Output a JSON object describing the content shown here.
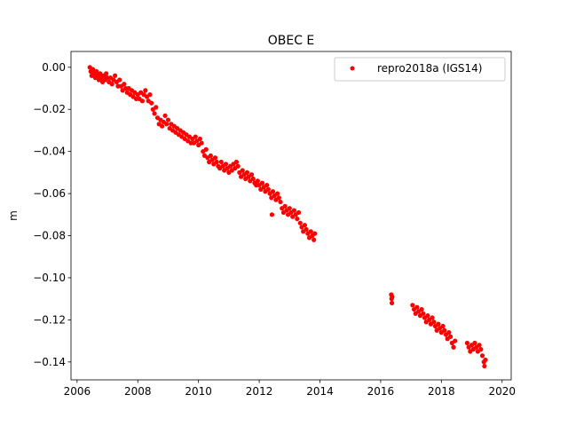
{
  "chart_data": {
    "type": "scatter",
    "title": "OBEC E",
    "xlabel": "",
    "ylabel": "m",
    "xlim": [
      2005.8,
      2020.3
    ],
    "ylim": [
      -0.1485,
      0.0075
    ],
    "xticks": [
      2006,
      2008,
      2010,
      2012,
      2014,
      2016,
      2018,
      2020
    ],
    "xtick_labels": [
      "2006",
      "2008",
      "2010",
      "2012",
      "2014",
      "2016",
      "2018",
      "2020"
    ],
    "yticks": [
      0.0,
      -0.02,
      -0.04,
      -0.06,
      -0.08,
      -0.1,
      -0.12,
      -0.14
    ],
    "ytick_labels": [
      "0.00",
      "−0.02",
      "−0.04",
      "−0.06",
      "−0.08",
      "−0.10",
      "−0.12",
      "−0.14"
    ],
    "grid": false,
    "legend_position": "top-right",
    "series": [
      {
        "name": "repro2018a (IGS14)",
        "color": "#ff0000",
        "marker": "point",
        "points": [
          [
            2006.42,
            0.0
          ],
          [
            2006.45,
            -0.002
          ],
          [
            2006.48,
            -0.004
          ],
          [
            2006.52,
            -0.001
          ],
          [
            2006.56,
            -0.003
          ],
          [
            2006.6,
            -0.005
          ],
          [
            2006.64,
            -0.002
          ],
          [
            2006.68,
            -0.004
          ],
          [
            2006.72,
            -0.006
          ],
          [
            2006.76,
            -0.003
          ],
          [
            2006.8,
            -0.005
          ],
          [
            2006.84,
            -0.007
          ],
          [
            2006.88,
            -0.004
          ],
          [
            2006.92,
            -0.006
          ],
          [
            2006.96,
            -0.003
          ],
          [
            2007.0,
            -0.005
          ],
          [
            2007.05,
            -0.007
          ],
          [
            2007.1,
            -0.005
          ],
          [
            2007.15,
            -0.008
          ],
          [
            2007.2,
            -0.006
          ],
          [
            2007.25,
            -0.004
          ],
          [
            2007.3,
            -0.007
          ],
          [
            2007.35,
            -0.009
          ],
          [
            2007.4,
            -0.006
          ],
          [
            2007.45,
            -0.009
          ],
          [
            2007.5,
            -0.011
          ],
          [
            2007.55,
            -0.008
          ],
          [
            2007.6,
            -0.01
          ],
          [
            2007.65,
            -0.012
          ],
          [
            2007.7,
            -0.01
          ],
          [
            2007.75,
            -0.013
          ],
          [
            2007.8,
            -0.011
          ],
          [
            2007.85,
            -0.014
          ],
          [
            2007.9,
            -0.012
          ],
          [
            2007.95,
            -0.015
          ],
          [
            2008.0,
            -0.013
          ],
          [
            2008.05,
            -0.015
          ],
          [
            2008.1,
            -0.012
          ],
          [
            2008.15,
            -0.016
          ],
          [
            2008.2,
            -0.013
          ],
          [
            2008.25,
            -0.011
          ],
          [
            2008.3,
            -0.014
          ],
          [
            2008.35,
            -0.016
          ],
          [
            2008.4,
            -0.013
          ],
          [
            2008.45,
            -0.017
          ],
          [
            2008.5,
            -0.02
          ],
          [
            2008.55,
            -0.022
          ],
          [
            2008.6,
            -0.019
          ],
          [
            2008.65,
            -0.024
          ],
          [
            2008.7,
            -0.027
          ],
          [
            2008.75,
            -0.025
          ],
          [
            2008.8,
            -0.028
          ],
          [
            2008.85,
            -0.026
          ],
          [
            2008.9,
            -0.023
          ],
          [
            2008.95,
            -0.027
          ],
          [
            2009.0,
            -0.025
          ],
          [
            2009.05,
            -0.029
          ],
          [
            2009.1,
            -0.027
          ],
          [
            2009.15,
            -0.03
          ],
          [
            2009.2,
            -0.028
          ],
          [
            2009.25,
            -0.031
          ],
          [
            2009.3,
            -0.029
          ],
          [
            2009.35,
            -0.032
          ],
          [
            2009.4,
            -0.03
          ],
          [
            2009.45,
            -0.033
          ],
          [
            2009.5,
            -0.031
          ],
          [
            2009.55,
            -0.034
          ],
          [
            2009.6,
            -0.032
          ],
          [
            2009.65,
            -0.035
          ],
          [
            2009.7,
            -0.033
          ],
          [
            2009.75,
            -0.036
          ],
          [
            2009.8,
            -0.034
          ],
          [
            2009.85,
            -0.036
          ],
          [
            2009.9,
            -0.033
          ],
          [
            2009.95,
            -0.035
          ],
          [
            2010.0,
            -0.037
          ],
          [
            2010.05,
            -0.034
          ],
          [
            2010.1,
            -0.036
          ],
          [
            2010.15,
            -0.04
          ],
          [
            2010.2,
            -0.042
          ],
          [
            2010.25,
            -0.039
          ],
          [
            2010.3,
            -0.043
          ],
          [
            2010.35,
            -0.045
          ],
          [
            2010.4,
            -0.042
          ],
          [
            2010.45,
            -0.044
          ],
          [
            2010.5,
            -0.046
          ],
          [
            2010.55,
            -0.043
          ],
          [
            2010.6,
            -0.045
          ],
          [
            2010.65,
            -0.047
          ],
          [
            2010.7,
            -0.048
          ],
          [
            2010.75,
            -0.045
          ],
          [
            2010.8,
            -0.047
          ],
          [
            2010.85,
            -0.049
          ],
          [
            2010.9,
            -0.046
          ],
          [
            2010.95,
            -0.048
          ],
          [
            2011.0,
            -0.05
          ],
          [
            2011.05,
            -0.047
          ],
          [
            2011.1,
            -0.049
          ],
          [
            2011.15,
            -0.046
          ],
          [
            2011.2,
            -0.048
          ],
          [
            2011.25,
            -0.045
          ],
          [
            2011.3,
            -0.047
          ],
          [
            2011.35,
            -0.05
          ],
          [
            2011.4,
            -0.052
          ],
          [
            2011.45,
            -0.049
          ],
          [
            2011.5,
            -0.051
          ],
          [
            2011.55,
            -0.053
          ],
          [
            2011.6,
            -0.05
          ],
          [
            2011.65,
            -0.052
          ],
          [
            2011.7,
            -0.054
          ],
          [
            2011.75,
            -0.051
          ],
          [
            2011.8,
            -0.053
          ],
          [
            2011.85,
            -0.055
          ],
          [
            2011.9,
            -0.056
          ],
          [
            2011.95,
            -0.054
          ],
          [
            2012.0,
            -0.056
          ],
          [
            2012.05,
            -0.058
          ],
          [
            2012.1,
            -0.055
          ],
          [
            2012.15,
            -0.057
          ],
          [
            2012.2,
            -0.059
          ],
          [
            2012.25,
            -0.056
          ],
          [
            2012.3,
            -0.058
          ],
          [
            2012.35,
            -0.06
          ],
          [
            2012.4,
            -0.062
          ],
          [
            2012.42,
            -0.07
          ],
          [
            2012.45,
            -0.059
          ],
          [
            2012.5,
            -0.061
          ],
          [
            2012.55,
            -0.063
          ],
          [
            2012.6,
            -0.06
          ],
          [
            2012.65,
            -0.062
          ],
          [
            2012.7,
            -0.064
          ],
          [
            2012.75,
            -0.067
          ],
          [
            2012.8,
            -0.069
          ],
          [
            2012.85,
            -0.066
          ],
          [
            2012.9,
            -0.068
          ],
          [
            2012.95,
            -0.07
          ],
          [
            2013.0,
            -0.067
          ],
          [
            2013.05,
            -0.069
          ],
          [
            2013.1,
            -0.071
          ],
          [
            2013.15,
            -0.068
          ],
          [
            2013.2,
            -0.07
          ],
          [
            2013.25,
            -0.072
          ],
          [
            2013.3,
            -0.069
          ],
          [
            2013.35,
            -0.074
          ],
          [
            2013.4,
            -0.076
          ],
          [
            2013.45,
            -0.078
          ],
          [
            2013.5,
            -0.075
          ],
          [
            2013.55,
            -0.077
          ],
          [
            2013.6,
            -0.079
          ],
          [
            2013.65,
            -0.081
          ],
          [
            2013.7,
            -0.078
          ],
          [
            2013.75,
            -0.08
          ],
          [
            2013.8,
            -0.082
          ],
          [
            2013.83,
            -0.079
          ],
          [
            2016.35,
            -0.108
          ],
          [
            2016.36,
            -0.11
          ],
          [
            2016.37,
            -0.112
          ],
          [
            2016.38,
            -0.109
          ],
          [
            2017.05,
            -0.113
          ],
          [
            2017.1,
            -0.115
          ],
          [
            2017.15,
            -0.117
          ],
          [
            2017.2,
            -0.114
          ],
          [
            2017.25,
            -0.116
          ],
          [
            2017.3,
            -0.118
          ],
          [
            2017.35,
            -0.115
          ],
          [
            2017.4,
            -0.117
          ],
          [
            2017.45,
            -0.119
          ],
          [
            2017.5,
            -0.121
          ],
          [
            2017.55,
            -0.118
          ],
          [
            2017.6,
            -0.12
          ],
          [
            2017.65,
            -0.122
          ],
          [
            2017.7,
            -0.119
          ],
          [
            2017.75,
            -0.121
          ],
          [
            2017.8,
            -0.123
          ],
          [
            2017.85,
            -0.125
          ],
          [
            2017.9,
            -0.122
          ],
          [
            2017.95,
            -0.124
          ],
          [
            2018.0,
            -0.126
          ],
          [
            2018.05,
            -0.123
          ],
          [
            2018.1,
            -0.125
          ],
          [
            2018.15,
            -0.127
          ],
          [
            2018.2,
            -0.129
          ],
          [
            2018.25,
            -0.126
          ],
          [
            2018.3,
            -0.128
          ],
          [
            2018.35,
            -0.131
          ],
          [
            2018.4,
            -0.133
          ],
          [
            2018.45,
            -0.13
          ],
          [
            2018.85,
            -0.131
          ],
          [
            2018.9,
            -0.133
          ],
          [
            2018.95,
            -0.135
          ],
          [
            2019.0,
            -0.132
          ],
          [
            2019.05,
            -0.134
          ],
          [
            2019.1,
            -0.131
          ],
          [
            2019.15,
            -0.133
          ],
          [
            2019.2,
            -0.135
          ],
          [
            2019.25,
            -0.132
          ],
          [
            2019.3,
            -0.134
          ],
          [
            2019.35,
            -0.137
          ],
          [
            2019.4,
            -0.14
          ],
          [
            2019.42,
            -0.142
          ],
          [
            2019.45,
            -0.139
          ]
        ]
      }
    ]
  }
}
